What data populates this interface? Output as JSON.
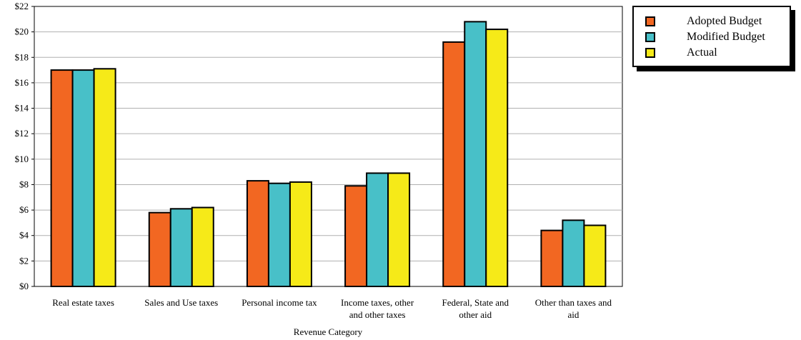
{
  "chart_data": {
    "type": "bar",
    "xlabel": "Revenue Category",
    "ylabel": "",
    "ylim": [
      0,
      22
    ],
    "y_ticks": [
      "$0",
      "$2",
      "$4",
      "$6",
      "$8",
      "$10",
      "$12",
      "$14",
      "$16",
      "$18",
      "$20",
      "$22"
    ],
    "grid": true,
    "legend_position": "top-right",
    "categories": [
      [
        "Real estate taxes"
      ],
      [
        "Sales and Use taxes"
      ],
      [
        "Personal income tax"
      ],
      [
        "Income taxes, other",
        "and other taxes"
      ],
      [
        "Federal, State and",
        "other aid"
      ],
      [
        "Other than taxes and",
        "aid"
      ]
    ],
    "series": [
      {
        "name": "Adopted Budget",
        "color": "#f26722",
        "values": [
          17.0,
          5.8,
          8.3,
          7.9,
          19.2,
          4.4
        ]
      },
      {
        "name": "Modified Budget",
        "color": "#48c0c8",
        "values": [
          17.0,
          6.1,
          8.1,
          8.9,
          20.8,
          5.2
        ]
      },
      {
        "name": "Actual",
        "color": "#f6ea18",
        "values": [
          17.1,
          6.2,
          8.2,
          8.9,
          20.2,
          4.8
        ]
      }
    ]
  }
}
